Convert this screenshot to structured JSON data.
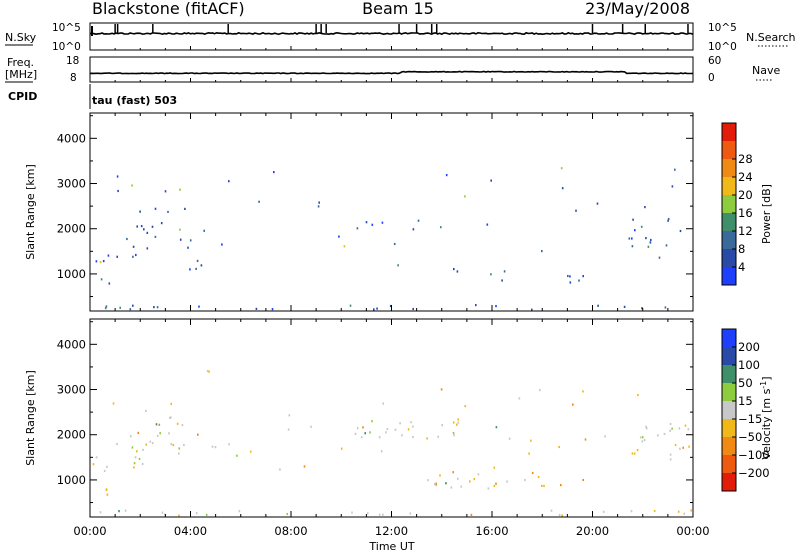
{
  "header": {
    "title_left": "Blackstone (fitACF)",
    "title_center": "Beam 15",
    "title_right": "23/May/2008"
  },
  "status": {
    "nsky_label": "N.Sky",
    "nsky_ticks": [
      "10^5",
      "10^0"
    ],
    "nsearch_label": "N.Search",
    "nsearch_ticks": [
      "10^5",
      "10^0"
    ],
    "freq_label_top": "Freq.",
    "freq_label_bottom": "[MHz]",
    "freq_ticks": [
      "18",
      "8"
    ],
    "nave_label": "Nave",
    "nave_ticks": [
      "60",
      "0"
    ],
    "cpid_label": "CPID",
    "cpid_value": "tau (fast) 503"
  },
  "colors": {
    "power": [
      "#1f3fff",
      "#2a4aa8",
      "#3a6a9a",
      "#3f8f6a",
      "#8ccc3e",
      "#f0b818",
      "#f08a14",
      "#ee5a10",
      "#e21b0b"
    ],
    "velocity": [
      "#e21b0b",
      "#ee5a10",
      "#f08a14",
      "#f0b818",
      "#c8c8c8",
      "#8ccc3e",
      "#3f8f6a",
      "#2a4aa8",
      "#1f3fff"
    ]
  },
  "chart_data": [
    {
      "type": "heatmap",
      "name": "power",
      "xlabel": "Time UT",
      "ylabel": "Slant Range [km]",
      "x_ticks": [
        "00:00",
        "04:00",
        "08:00",
        "12:00",
        "16:00",
        "20:00",
        "00:00"
      ],
      "y_ticks": [
        1000,
        2000,
        3000,
        4000
      ],
      "ylim": [
        180,
        4560
      ],
      "xlim_hours": [
        0,
        24
      ],
      "colorbar_label": "Power [dB]",
      "colorbar_ticks": [
        4,
        8,
        12,
        16,
        20,
        24,
        28
      ],
      "colorbar_range": [
        0,
        32
      ],
      "scatter_regions": [
        {
          "t0": 0.0,
          "t1": 1.1,
          "r0": 1150,
          "r1": 1500,
          "level": 0.45
        },
        {
          "t0": 0.0,
          "t1": 1.0,
          "r0": 650,
          "r1": 900,
          "level": 0.3
        },
        {
          "t0": 1.0,
          "t1": 2.6,
          "r0": 1300,
          "r1": 2100,
          "level": 0.35
        },
        {
          "t0": 2.2,
          "t1": 3.8,
          "r0": 1900,
          "r1": 2500,
          "level": 0.2
        },
        {
          "t0": 3.2,
          "t1": 6.0,
          "r0": 1550,
          "r1": 1800,
          "level": 0.2
        },
        {
          "t0": 13.2,
          "t1": 19.8,
          "r0": 800,
          "r1": 1000,
          "level": 0.2
        },
        {
          "t0": 13.5,
          "t1": 15.5,
          "r0": 1000,
          "r1": 1200,
          "level": 0.2
        },
        {
          "t0": 10.5,
          "t1": 14.8,
          "r0": 1900,
          "r1": 2350,
          "level": 0.15
        },
        {
          "t0": 21.5,
          "t1": 24.0,
          "r0": 1550,
          "r1": 2250,
          "level": 0.2
        },
        {
          "t0": 0.0,
          "t1": 24.0,
          "r0": 200,
          "r1": 320,
          "level": 0.3
        }
      ]
    },
    {
      "type": "heatmap",
      "name": "velocity",
      "xlabel": "Time UT",
      "ylabel": "Slant Range [km]",
      "x_ticks": [
        "00:00",
        "04:00",
        "08:00",
        "12:00",
        "16:00",
        "20:00",
        "00:00"
      ],
      "y_ticks": [
        1000,
        2000,
        3000,
        4000
      ],
      "ylim": [
        180,
        4560
      ],
      "xlim_hours": [
        0,
        24
      ],
      "colorbar_label": "Velocity [m s^-1]",
      "colorbar_ticks": [
        "-200",
        "-100",
        "-50",
        "-15",
        "15",
        "50",
        "100",
        "200"
      ],
      "scatter_regions": [
        {
          "t0": 0.0,
          "t1": 1.1,
          "r0": 1150,
          "r1": 1500,
          "level": 0.45
        },
        {
          "t0": 0.0,
          "t1": 1.0,
          "r0": 650,
          "r1": 900,
          "level": 0.45
        },
        {
          "t0": 1.0,
          "t1": 2.6,
          "r0": 1300,
          "r1": 2100,
          "level": 0.35
        },
        {
          "t0": 2.2,
          "t1": 3.8,
          "r0": 1900,
          "r1": 2500,
          "level": 0.35
        },
        {
          "t0": 3.2,
          "t1": 6.0,
          "r0": 1550,
          "r1": 1800,
          "level": 0.45
        },
        {
          "t0": 13.2,
          "t1": 19.8,
          "r0": 800,
          "r1": 1000,
          "level": 0.5
        },
        {
          "t0": 13.5,
          "t1": 15.5,
          "r0": 1000,
          "r1": 1200,
          "level": 0.5
        },
        {
          "t0": 10.5,
          "t1": 14.8,
          "r0": 1900,
          "r1": 2350,
          "level": 0.5
        },
        {
          "t0": 21.5,
          "t1": 24.0,
          "r0": 1550,
          "r1": 2250,
          "level": 0.5
        },
        {
          "t0": 0.0,
          "t1": 24.0,
          "r0": 200,
          "r1": 320,
          "level": 0.35
        }
      ]
    }
  ]
}
